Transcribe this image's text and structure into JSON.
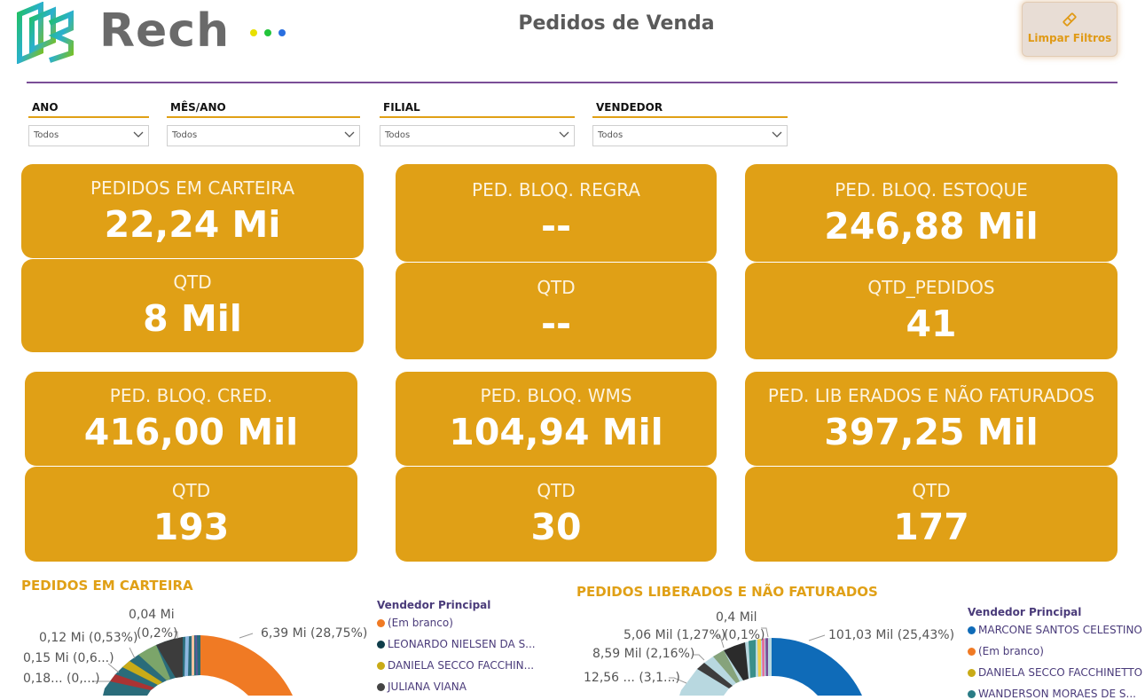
{
  "header": {
    "logo_text": "Rech",
    "title": "Pedidos de Venda",
    "clear_button_label": "Limpar Filtros",
    "dot_colors": [
      "#e8e000",
      "#22c43a",
      "#2a6fe0"
    ]
  },
  "slicers": [
    {
      "label": "ANO",
      "value": "Todos"
    },
    {
      "label": "MÊS/ANO",
      "value": "Todos"
    },
    {
      "label": "FILIAL",
      "value": "Todos"
    },
    {
      "label": "VENDEDOR",
      "value": "Todos"
    }
  ],
  "cards": {
    "carteira": {
      "label": "PEDIDOS EM CARTEIRA",
      "value": "22,24 Mi"
    },
    "carteira_qtd": {
      "label": "QTD",
      "value": "8 Mil"
    },
    "regra": {
      "label": "PED. BLOQ. REGRA",
      "value": "--"
    },
    "regra_qtd": {
      "label": "QTD",
      "value": "--"
    },
    "estoque": {
      "label": "PED. BLOQ. ESTOQUE",
      "value": "246,88 Mil"
    },
    "estoque_qtd": {
      "label": "QTD_PEDIDOS",
      "value": "41"
    },
    "cred": {
      "label": "PED. BLOQ. CRED.",
      "value": "416,00 Mil"
    },
    "cred_qtd": {
      "label": "QTD",
      "value": "193"
    },
    "wms": {
      "label": "PED. BLOQ. WMS",
      "value": "104,94 Mil"
    },
    "wms_qtd": {
      "label": "QTD",
      "value": "30"
    },
    "liberados": {
      "label": "PED. LIB ERADOS E NÃO FATURADOS",
      "value": "397,25 Mil"
    },
    "liberados_qtd": {
      "label": "QTD",
      "value": "177"
    }
  },
  "colors": {
    "accent": "#e0a016",
    "divider": "#7a4e97",
    "legend_text": "#4a3b7a"
  },
  "chart_data": [
    {
      "type": "pie",
      "title": "PEDIDOS EM CARTEIRA",
      "legend_title": "Vendedor Principal",
      "legend": [
        {
          "name": "(Em branco)",
          "color": "#f07a24"
        },
        {
          "name": "LEONARDO NIELSEN DA S...",
          "color": "#0f3d4a"
        },
        {
          "name": "DANIELA SECCO FACCHIN...",
          "color": "#c9ab17"
        },
        {
          "name": "JULIANA VIANA",
          "color": "#444444"
        }
      ],
      "data_labels": [
        "6,39 Mi (28,75%)",
        "0,04 Mi",
        "(0,2%)",
        "0,12 Mi (0,53%)",
        "0,15 Mi (0,6...)",
        "0,18... (0,...)"
      ],
      "slices": [
        {
          "label": "6,39 Mi (28,75%)",
          "value": 28.75,
          "color": "#f07a24"
        }
      ]
    },
    {
      "type": "pie",
      "title": "PEDIDOS LIBERADOS E NÃO FATURADOS",
      "legend_title": "Vendedor Principal",
      "legend": [
        {
          "name": "MARCONE SANTOS CELESTINO",
          "color": "#0f6bb8"
        },
        {
          "name": "(Em branco)",
          "color": "#f07a24"
        },
        {
          "name": "DANIELA SECCO FACCHINETTO",
          "color": "#c9ab17"
        },
        {
          "name": "WANDERSON MORAES DE S...",
          "color": "#2a7c86"
        }
      ],
      "data_labels": [
        "101,03 Mil (25,43%)",
        "0,4 Mil",
        "(0,1%)",
        "5,06 Mil (1,27%)",
        "8,59 Mil (2,16%)",
        "12,56 ... (3,1...)"
      ],
      "slices": [
        {
          "label": "101,03 Mil (25,43%)",
          "value": 25.43,
          "color": "#0f6bb8"
        },
        {
          "label": "5,06 Mil (1,27%)",
          "value": 1.27,
          "color": "#3d3d3d"
        },
        {
          "label": "8,59 Mil (2,16%)",
          "value": 2.16,
          "color": "#86a37b"
        }
      ]
    }
  ]
}
